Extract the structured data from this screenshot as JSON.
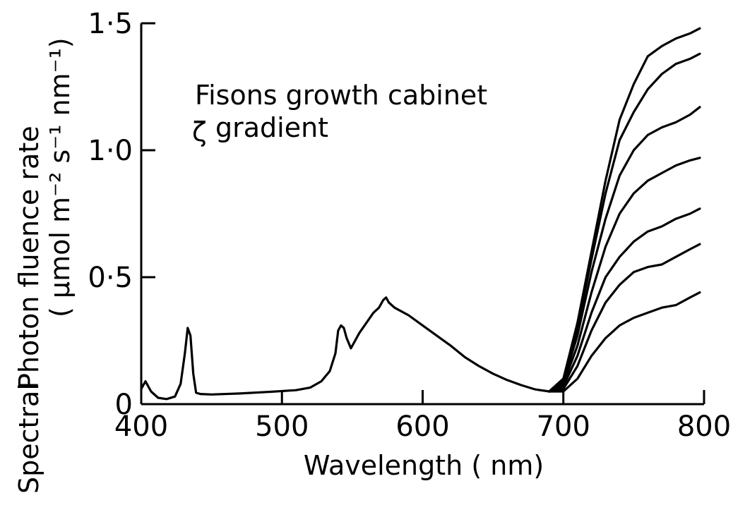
{
  "chart_data": {
    "type": "line",
    "title": "",
    "annotation": {
      "line1": "Fisons growth cabinet",
      "line2_symbol": "ζ",
      "line2_text": "gradient"
    },
    "xlabel": "Wavelength ( nm)",
    "ylabel_prefix": "Spectral",
    "ylabel_line1": "Photon fluence rate",
    "ylabel_line2": "( μmol m⁻² s⁻¹ nm⁻¹)",
    "xlim": [
      400,
      800
    ],
    "ylim": [
      0,
      1.5
    ],
    "x_ticks": [
      {
        "value": 400,
        "label": "400"
      },
      {
        "value": 500,
        "label": "500"
      },
      {
        "value": 600,
        "label": "600"
      },
      {
        "value": 700,
        "label": "700"
      },
      {
        "value": 800,
        "label": "800"
      }
    ],
    "y_ticks": [
      {
        "value": 0,
        "label": "0"
      },
      {
        "value": 0.5,
        "label": "0·5"
      },
      {
        "value": 1.0,
        "label": "1·0"
      },
      {
        "value": 1.5,
        "label": "1·5"
      }
    ],
    "common_curve": {
      "x": [
        400,
        403,
        407,
        412,
        418,
        424,
        428,
        431,
        433,
        435,
        437,
        439,
        442,
        450,
        470,
        490,
        510,
        520,
        528,
        534,
        538,
        540,
        542,
        544,
        546,
        549,
        551,
        555,
        560,
        565,
        569,
        572,
        574,
        576,
        580,
        590,
        600,
        610,
        620,
        630,
        640,
        650,
        660,
        670,
        680,
        690
      ],
      "y": [
        0.06,
        0.09,
        0.05,
        0.025,
        0.02,
        0.03,
        0.08,
        0.2,
        0.3,
        0.27,
        0.12,
        0.045,
        0.04,
        0.038,
        0.042,
        0.048,
        0.055,
        0.065,
        0.09,
        0.13,
        0.2,
        0.29,
        0.31,
        0.3,
        0.26,
        0.22,
        0.24,
        0.28,
        0.32,
        0.36,
        0.38,
        0.41,
        0.42,
        0.4,
        0.38,
        0.35,
        0.31,
        0.27,
        0.23,
        0.185,
        0.15,
        0.12,
        0.095,
        0.075,
        0.058,
        0.05
      ]
    },
    "series": [
      {
        "x": [
          690,
          700,
          710,
          720,
          730,
          740,
          750,
          760,
          770,
          780,
          790,
          797
        ],
        "values": [
          0.05,
          0.1,
          0.32,
          0.6,
          0.88,
          1.12,
          1.26,
          1.37,
          1.41,
          1.44,
          1.46,
          1.48
        ]
      },
      {
        "x": [
          690,
          700,
          710,
          720,
          730,
          740,
          750,
          760,
          770,
          780,
          790,
          797
        ],
        "values": [
          0.05,
          0.1,
          0.3,
          0.57,
          0.83,
          1.04,
          1.15,
          1.24,
          1.3,
          1.34,
          1.36,
          1.38
        ]
      },
      {
        "x": [
          690,
          700,
          710,
          720,
          730,
          740,
          750,
          760,
          770,
          780,
          790,
          797
        ],
        "values": [
          0.05,
          0.09,
          0.27,
          0.52,
          0.73,
          0.9,
          1.0,
          1.06,
          1.09,
          1.11,
          1.14,
          1.17
        ]
      },
      {
        "x": [
          690,
          700,
          710,
          720,
          730,
          740,
          750,
          760,
          770,
          780,
          790,
          797
        ],
        "values": [
          0.05,
          0.08,
          0.23,
          0.44,
          0.62,
          0.75,
          0.83,
          0.88,
          0.91,
          0.94,
          0.96,
          0.97
        ]
      },
      {
        "x": [
          690,
          700,
          710,
          720,
          730,
          740,
          750,
          760,
          770,
          780,
          790,
          797
        ],
        "values": [
          0.05,
          0.07,
          0.19,
          0.36,
          0.5,
          0.58,
          0.64,
          0.68,
          0.7,
          0.73,
          0.75,
          0.77
        ]
      },
      {
        "x": [
          690,
          700,
          710,
          720,
          730,
          740,
          750,
          760,
          770,
          780,
          790,
          797
        ],
        "values": [
          0.05,
          0.06,
          0.15,
          0.29,
          0.4,
          0.47,
          0.52,
          0.54,
          0.55,
          0.58,
          0.61,
          0.63
        ]
      },
      {
        "x": [
          690,
          700,
          710,
          720,
          730,
          740,
          750,
          760,
          770,
          780,
          790,
          797
        ],
        "values": [
          0.05,
          0.05,
          0.1,
          0.19,
          0.26,
          0.31,
          0.34,
          0.36,
          0.38,
          0.39,
          0.42,
          0.44
        ]
      }
    ]
  }
}
